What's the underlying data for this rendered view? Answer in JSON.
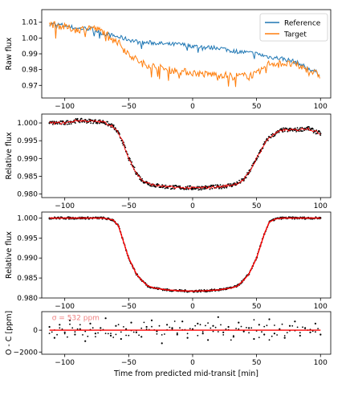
{
  "chart_data": [
    {
      "type": "line",
      "ylabel": "Raw flux",
      "xlabel": "",
      "xlim": [
        -118,
        108
      ],
      "ylim": [
        0.962,
        1.018
      ],
      "x_ticks": [
        -100,
        -50,
        0,
        50,
        100
      ],
      "y_ticks": [
        0.97,
        0.98,
        0.99,
        1.0,
        1.01
      ],
      "y_tick_labels": [
        "0.97",
        "0.98",
        "0.99",
        "1.00",
        "1.01"
      ],
      "legend_placement": "top-right",
      "grid": false,
      "series": [
        {
          "name": "Reference",
          "color": "#1f77b4",
          "x": [
            -112,
            -100,
            -90,
            -80,
            -70,
            -60,
            -50,
            -40,
            -30,
            -20,
            -10,
            0,
            10,
            20,
            30,
            40,
            50,
            60,
            70,
            80,
            90,
            100
          ],
          "values": [
            1.009,
            1.008,
            1.006,
            1.006,
            1.003,
            1.001,
            0.999,
            0.997,
            0.997,
            0.996,
            0.996,
            0.995,
            0.994,
            0.994,
            0.992,
            0.991,
            0.99,
            0.988,
            0.987,
            0.985,
            0.981,
            0.977
          ]
        },
        {
          "name": "Target",
          "color": "#ff7f0e",
          "x": [
            -112,
            -100,
            -90,
            -80,
            -70,
            -60,
            -50,
            -40,
            -30,
            -20,
            -10,
            0,
            10,
            20,
            30,
            40,
            50,
            60,
            70,
            80,
            90,
            100
          ],
          "values": [
            1.009,
            1.007,
            1.005,
            1.007,
            1.004,
            0.999,
            0.99,
            0.984,
            0.982,
            0.98,
            0.979,
            0.978,
            0.977,
            0.977,
            0.976,
            0.976,
            0.977,
            0.984,
            0.984,
            0.983,
            0.98,
            0.976
          ]
        }
      ]
    },
    {
      "type": "scatter",
      "ylabel": "Relative flux",
      "xlabel": "",
      "xlim": [
        -118,
        108
      ],
      "ylim": [
        0.979,
        1.0025
      ],
      "x_ticks": [
        -100,
        -50,
        0,
        50,
        100
      ],
      "y_ticks": [
        0.98,
        0.985,
        0.99,
        0.995,
        1.0
      ],
      "y_tick_labels": [
        "0.980",
        "0.985",
        "0.990",
        "0.995",
        "1.000"
      ],
      "grid": false,
      "series": [
        {
          "name": "",
          "color": "#000000",
          "kind": "points",
          "x": [
            -112,
            -100,
            -90,
            -80,
            -70,
            -62,
            -58,
            -55,
            -52,
            -50,
            -47,
            -44,
            -40,
            -35,
            -30,
            -20,
            -10,
            0,
            10,
            20,
            30,
            35,
            40,
            44,
            47,
            50,
            53,
            56,
            60,
            65,
            70,
            80,
            90,
            100
          ],
          "values": [
            1.0,
            1.0,
            1.0007,
            1.0005,
            1.0003,
            0.999,
            0.997,
            0.995,
            0.992,
            0.99,
            0.988,
            0.986,
            0.984,
            0.983,
            0.9825,
            0.982,
            0.9818,
            0.9817,
            0.9818,
            0.982,
            0.9825,
            0.983,
            0.984,
            0.986,
            0.988,
            0.99,
            0.992,
            0.994,
            0.996,
            0.997,
            0.998,
            0.998,
            0.9985,
            0.997
          ]
        },
        {
          "name": "",
          "color": "#ff0000",
          "kind": "line",
          "x": [
            -112,
            -100,
            -90,
            -80,
            -70,
            -62,
            -58,
            -55,
            -52,
            -50,
            -47,
            -44,
            -40,
            -35,
            -30,
            -20,
            -10,
            0,
            10,
            20,
            30,
            35,
            40,
            44,
            47,
            50,
            53,
            56,
            60,
            65,
            70,
            80,
            90,
            100
          ],
          "values": [
            1.0,
            1.0,
            1.0007,
            1.0005,
            1.0003,
            0.999,
            0.997,
            0.995,
            0.992,
            0.99,
            0.988,
            0.986,
            0.984,
            0.983,
            0.9825,
            0.982,
            0.9818,
            0.9817,
            0.9818,
            0.982,
            0.9825,
            0.983,
            0.984,
            0.986,
            0.988,
            0.99,
            0.992,
            0.994,
            0.996,
            0.997,
            0.998,
            0.998,
            0.9985,
            0.997
          ]
        }
      ]
    },
    {
      "type": "scatter",
      "ylabel": "Relative flux",
      "xlabel": "",
      "xlim": [
        -118,
        108
      ],
      "ylim": [
        0.98,
        1.0015
      ],
      "x_ticks": [
        -100,
        -50,
        0,
        50,
        100
      ],
      "y_ticks": [
        0.98,
        0.985,
        0.99,
        0.995,
        1.0
      ],
      "y_tick_labels": [
        "0.980",
        "0.985",
        "0.990",
        "0.995",
        "1.000"
      ],
      "grid": false,
      "series": [
        {
          "name": "",
          "color": "#000000",
          "kind": "points",
          "x": [
            -112,
            -100,
            -90,
            -80,
            -70,
            -62,
            -58,
            -55,
            -52,
            -50,
            -47,
            -44,
            -40,
            -35,
            -30,
            -20,
            -10,
            0,
            10,
            20,
            30,
            35,
            40,
            44,
            47,
            50,
            53,
            56,
            60,
            65,
            70,
            80,
            90,
            100
          ],
          "values": [
            1.0,
            1.0,
            1.0,
            1.0,
            1.0,
            0.9995,
            0.998,
            0.995,
            0.992,
            0.99,
            0.988,
            0.986,
            0.9845,
            0.983,
            0.9825,
            0.982,
            0.9818,
            0.9817,
            0.9818,
            0.982,
            0.9825,
            0.983,
            0.9845,
            0.986,
            0.988,
            0.99,
            0.993,
            0.996,
            0.999,
            0.9998,
            1.0,
            1.0,
            1.0,
            1.0
          ]
        },
        {
          "name": "",
          "color": "#ff0000",
          "kind": "line",
          "x": [
            -112,
            -100,
            -90,
            -80,
            -70,
            -62,
            -58,
            -55,
            -52,
            -50,
            -47,
            -44,
            -40,
            -35,
            -30,
            -20,
            -10,
            0,
            10,
            20,
            30,
            35,
            40,
            44,
            47,
            50,
            53,
            56,
            60,
            65,
            70,
            80,
            90,
            100
          ],
          "values": [
            1.0,
            1.0,
            1.0,
            1.0,
            1.0,
            0.9995,
            0.998,
            0.995,
            0.992,
            0.99,
            0.988,
            0.986,
            0.9845,
            0.983,
            0.9825,
            0.982,
            0.9818,
            0.9817,
            0.9818,
            0.982,
            0.9825,
            0.983,
            0.9845,
            0.986,
            0.988,
            0.99,
            0.993,
            0.996,
            0.999,
            0.9998,
            1.0,
            1.0,
            1.0,
            1.0
          ]
        }
      ]
    },
    {
      "type": "scatter",
      "ylabel": "O - C [ppm]",
      "xlabel": "Time from predicted mid-transit [min]",
      "xlim": [
        -118,
        108
      ],
      "ylim": [
        -2200,
        1700
      ],
      "x_ticks": [
        -100,
        -50,
        0,
        50,
        100
      ],
      "y_ticks": [
        -2000,
        0
      ],
      "y_tick_labels": [
        "−2000",
        "0"
      ],
      "grid": false,
      "annotation": {
        "text": "σ = 532 ppm",
        "color": "#f08080",
        "x": -110,
        "y": 1150
      },
      "series": [
        {
          "name": "",
          "color": "#000000",
          "kind": "points",
          "x": [
            -112,
            -108,
            -104,
            -100,
            -96,
            -92,
            -88,
            -84,
            -80,
            -76,
            -72,
            -68,
            -64,
            -60,
            -56,
            -52,
            -48,
            -44,
            -40,
            -36,
            -32,
            -28,
            -24,
            -20,
            -16,
            -12,
            -8,
            -4,
            0,
            4,
            8,
            12,
            16,
            20,
            24,
            28,
            32,
            36,
            40,
            44,
            48,
            52,
            56,
            60,
            64,
            68,
            72,
            76,
            80,
            84,
            88,
            92,
            96,
            100
          ],
          "values": [
            300,
            -700,
            500,
            -200,
            900,
            -400,
            100,
            -1000,
            600,
            -300,
            200,
            1100,
            -500,
            400,
            -800,
            100,
            700,
            -200,
            -600,
            300,
            900,
            -100,
            -1200,
            500,
            200,
            -400,
            800,
            -700,
            100,
            600,
            -300,
            -900,
            400,
            1200,
            -200,
            300,
            -600,
            700,
            -100,
            200,
            -800,
            500,
            -400,
            1000,
            -300,
            100,
            -700,
            400,
            800,
            -500,
            200,
            -200,
            600,
            -400
          ]
        },
        {
          "name": "",
          "color": "#ff0000",
          "kind": "line",
          "x": [
            -112,
            100
          ],
          "values": [
            0,
            0
          ]
        }
      ]
    }
  ]
}
